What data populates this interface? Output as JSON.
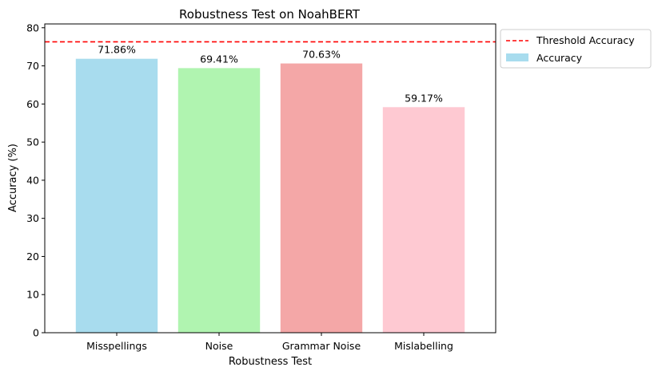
{
  "chart_data": {
    "type": "bar",
    "title": "Robustness Test on NoahBERT",
    "xlabel": "Robustness Test",
    "ylabel": "Accuracy (%)",
    "categories": [
      "Misspellings",
      "Noise",
      "Grammar Noise",
      "Mislabelling"
    ],
    "series": [
      {
        "name": "Accuracy",
        "values": [
          71.86,
          69.41,
          70.63,
          59.17
        ],
        "data_labels": [
          "71.86%",
          "69.41%",
          "70.63%",
          "59.17%"
        ],
        "colors": [
          "#a8dcee",
          "#b0f4b0",
          "#f4a7a7",
          "#fec9d2"
        ]
      }
    ],
    "threshold": {
      "name": "Threshold Accuracy",
      "value": 76.3,
      "color": "#ff0000"
    },
    "ylim": [
      0,
      81
    ],
    "yticks": [
      0,
      10,
      20,
      30,
      40,
      50,
      60,
      70,
      80
    ],
    "ytick_labels": [
      "0",
      "10",
      "20",
      "30",
      "40",
      "50",
      "60",
      "70",
      "80"
    ],
    "grid": false,
    "legend": {
      "placement": "outside-top-right",
      "entries": [
        "Threshold Accuracy",
        "Accuracy"
      ]
    }
  }
}
